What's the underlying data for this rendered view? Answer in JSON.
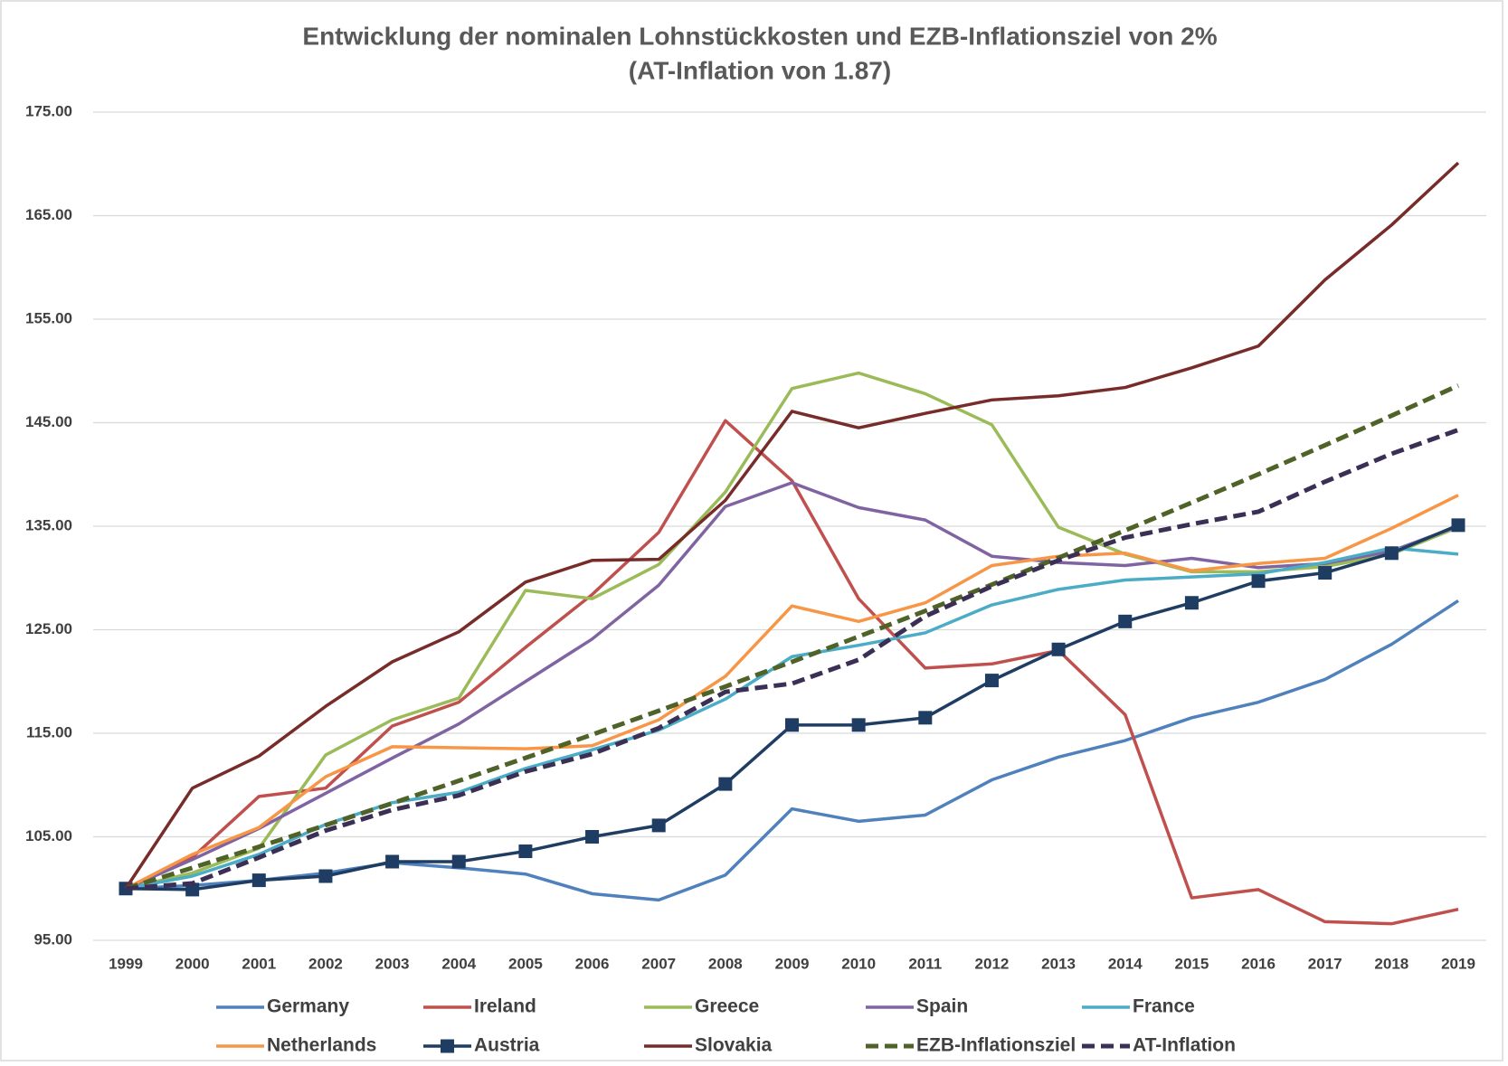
{
  "chart_data": {
    "type": "line",
    "title": "Entwicklung der nominalen Lohnstückkosten und EZB-Inflationsziel von 2%",
    "subtitle": "(AT-Inflation von 1.87)",
    "categories": [
      "1999",
      "2000",
      "2001",
      "2002",
      "2003",
      "2004",
      "2005",
      "2006",
      "2007",
      "2008",
      "2009",
      "2010",
      "2011",
      "2012",
      "2013",
      "2014",
      "2015",
      "2016",
      "2017",
      "2018",
      "2019"
    ],
    "ylim": [
      95,
      175
    ],
    "yticks": [
      {
        "value": 95,
        "label": "95.00"
      },
      {
        "value": 105,
        "label": "105.00"
      },
      {
        "value": 115,
        "label": "115.00"
      },
      {
        "value": 125,
        "label": "125.00"
      },
      {
        "value": 135,
        "label": "135.00"
      },
      {
        "value": 145,
        "label": "145.00"
      },
      {
        "value": 155,
        "label": "155.00"
      },
      {
        "value": 165,
        "label": "165.00"
      },
      {
        "value": 175,
        "label": "175.00"
      }
    ],
    "grid": true,
    "series": [
      {
        "name": "Germany",
        "color": "#4f81bd",
        "values": [
          100,
          100.3,
          100.8,
          101.5,
          102.5,
          102.0,
          101.4,
          99.5,
          98.9,
          101.3,
          107.7,
          106.5,
          107.1,
          110.5,
          112.7,
          114.3,
          116.5,
          118.0,
          120.2,
          123.6,
          127.8
        ]
      },
      {
        "name": "Ireland",
        "color": "#c0504d",
        "values": [
          100,
          103.0,
          108.9,
          109.7,
          115.7,
          118.0,
          123.3,
          128.4,
          134.4,
          145.2,
          139.4,
          128.0,
          121.3,
          121.7,
          123.0,
          116.8,
          99.1,
          99.9,
          96.8,
          96.6,
          98.0
        ]
      },
      {
        "name": "Greece",
        "color": "#9bbb59",
        "values": [
          100,
          101.5,
          103.9,
          112.9,
          116.3,
          118.4,
          128.8,
          128.0,
          131.3,
          138.3,
          148.3,
          149.8,
          147.8,
          144.8,
          134.9,
          132.3,
          130.6,
          130.6,
          131.1,
          132.3,
          134.9
        ]
      },
      {
        "name": "Spain",
        "color": "#8064a2",
        "values": [
          100,
          102.8,
          105.8,
          109.2,
          112.6,
          115.9,
          120.0,
          124.1,
          129.3,
          136.9,
          139.2,
          136.8,
          135.6,
          132.1,
          131.5,
          131.2,
          131.9,
          131.0,
          131.4,
          132.6,
          135.0
        ]
      },
      {
        "name": "France",
        "color": "#4bacc6",
        "values": [
          100,
          101.2,
          103.3,
          106.2,
          108.3,
          109.3,
          111.6,
          113.4,
          115.3,
          118.3,
          122.4,
          123.5,
          124.7,
          127.4,
          128.9,
          129.8,
          130.1,
          130.4,
          131.5,
          132.9,
          132.3
        ]
      },
      {
        "name": "Netherlands",
        "color": "#f79646",
        "values": [
          100,
          103.3,
          105.9,
          110.8,
          113.7,
          113.6,
          113.5,
          113.8,
          116.3,
          120.5,
          127.3,
          125.8,
          127.6,
          131.2,
          132.1,
          132.4,
          130.7,
          131.4,
          131.9,
          134.8,
          138.0
        ]
      },
      {
        "name": "Austria",
        "color": "#1f3d63",
        "marker": "square",
        "values": [
          100,
          99.9,
          100.8,
          101.2,
          102.6,
          102.6,
          103.6,
          105.0,
          106.1,
          110.1,
          115.8,
          115.8,
          116.5,
          120.1,
          123.1,
          125.8,
          127.6,
          129.7,
          130.5,
          132.4,
          135.1
        ]
      },
      {
        "name": "Slovakia",
        "color": "#772c2a",
        "values": [
          100,
          109.7,
          112.8,
          117.6,
          121.9,
          124.8,
          129.6,
          131.7,
          131.8,
          137.5,
          146.1,
          144.5,
          145.9,
          147.2,
          147.6,
          148.4,
          150.3,
          152.4,
          158.8,
          164.1,
          170.1
        ]
      },
      {
        "name": "EZB-Inflationsziel",
        "color": "#4f6228",
        "dash": true,
        "values": [
          100,
          102,
          104.04,
          106.12,
          108.24,
          110.41,
          112.62,
          114.87,
          117.17,
          119.51,
          121.9,
          124.34,
          126.82,
          129.36,
          131.95,
          134.59,
          137.28,
          140.02,
          142.82,
          145.68,
          148.59
        ]
      },
      {
        "name": "AT-Inflation",
        "color": "#3b2f56",
        "dash": true,
        "values": [
          100,
          100.5,
          103.0,
          105.6,
          107.6,
          109.0,
          111.3,
          113.0,
          115.5,
          119.0,
          119.8,
          122.1,
          126.3,
          129.2,
          131.7,
          133.9,
          135.2,
          136.4,
          139.3,
          142.0,
          144.3
        ]
      }
    ]
  }
}
